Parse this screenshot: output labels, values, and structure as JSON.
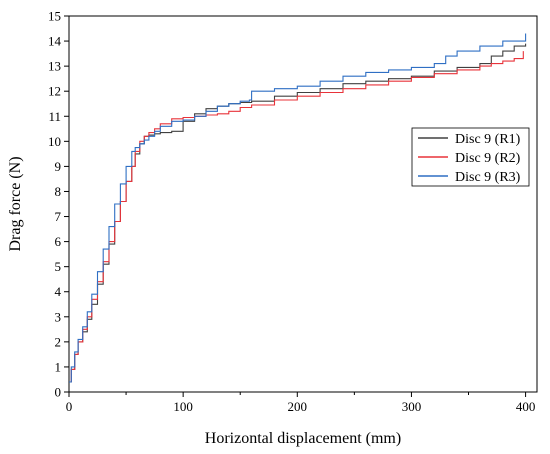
{
  "chart_data": {
    "type": "line",
    "title": "",
    "xlabel": "Horizontal displacement (mm)",
    "ylabel": "Drag force (N)",
    "xlim": [
      0,
      410
    ],
    "ylim": [
      0,
      15
    ],
    "xticks": [
      0,
      100,
      200,
      300,
      400
    ],
    "yticks": [
      0,
      1,
      2,
      3,
      4,
      5,
      6,
      7,
      8,
      9,
      10,
      11,
      12,
      13,
      14,
      15
    ],
    "grid": false,
    "legend_position": "right",
    "series": [
      {
        "name": "Disc 9 (R1)",
        "color": "#404040",
        "x": [
          0,
          2,
          5,
          8,
          12,
          16,
          20,
          25,
          30,
          35,
          40,
          45,
          50,
          55,
          58,
          62,
          66,
          70,
          75,
          80,
          90,
          100,
          110,
          120,
          130,
          140,
          150,
          160,
          180,
          200,
          220,
          240,
          260,
          280,
          300,
          320,
          340,
          360,
          370,
          380,
          390,
          400
        ],
        "y": [
          0.4,
          0.9,
          1.5,
          2.0,
          2.4,
          2.9,
          3.5,
          4.3,
          5.1,
          5.9,
          6.8,
          7.6,
          8.4,
          9.0,
          9.5,
          9.9,
          10.2,
          10.25,
          10.3,
          10.35,
          10.4,
          10.8,
          11.1,
          11.3,
          11.4,
          11.5,
          11.55,
          11.6,
          11.8,
          11.95,
          12.1,
          12.3,
          12.4,
          12.5,
          12.6,
          12.8,
          12.95,
          13.1,
          13.4,
          13.6,
          13.8,
          13.9
        ]
      },
      {
        "name": "Disc 9 (R2)",
        "color": "#e8333a",
        "x": [
          0,
          2,
          5,
          8,
          12,
          16,
          20,
          25,
          30,
          35,
          40,
          45,
          50,
          55,
          58,
          62,
          66,
          70,
          75,
          80,
          90,
          100,
          110,
          120,
          130,
          140,
          150,
          160,
          180,
          200,
          220,
          240,
          260,
          280,
          300,
          320,
          340,
          360,
          370,
          380,
          390,
          398
        ],
        "y": [
          0.4,
          0.9,
          1.5,
          2.0,
          2.5,
          3.0,
          3.7,
          4.4,
          5.2,
          6.0,
          6.8,
          7.6,
          8.4,
          9.0,
          9.6,
          10.0,
          10.2,
          10.35,
          10.5,
          10.7,
          10.9,
          10.95,
          11.0,
          11.05,
          11.1,
          11.2,
          11.35,
          11.45,
          11.65,
          11.8,
          11.95,
          12.1,
          12.25,
          12.4,
          12.55,
          12.7,
          12.85,
          13.0,
          13.1,
          13.2,
          13.3,
          13.6
        ]
      },
      {
        "name": "Disc 9 (R3)",
        "color": "#2f6fc4",
        "x": [
          0,
          2,
          5,
          8,
          12,
          16,
          20,
          25,
          30,
          35,
          40,
          45,
          50,
          55,
          58,
          62,
          66,
          70,
          75,
          80,
          90,
          100,
          110,
          120,
          130,
          140,
          150,
          158,
          160,
          180,
          200,
          220,
          240,
          260,
          280,
          300,
          320,
          330,
          340,
          360,
          380,
          400
        ],
        "y": [
          0.4,
          1.0,
          1.6,
          2.1,
          2.6,
          3.2,
          3.9,
          4.8,
          5.7,
          6.6,
          7.5,
          8.3,
          9.0,
          9.6,
          9.75,
          9.9,
          10.05,
          10.2,
          10.4,
          10.6,
          10.8,
          10.85,
          11.0,
          11.2,
          11.4,
          11.5,
          11.6,
          11.65,
          12.0,
          12.1,
          12.2,
          12.4,
          12.6,
          12.75,
          12.85,
          12.95,
          13.1,
          13.4,
          13.6,
          13.8,
          14.0,
          14.3
        ]
      }
    ]
  }
}
